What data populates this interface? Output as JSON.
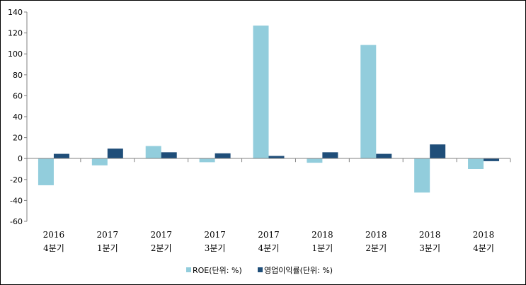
{
  "chart_data": {
    "type": "bar",
    "categories": [
      [
        "2016",
        "4분기"
      ],
      [
        "2017",
        "1분기"
      ],
      [
        "2017",
        "2분기"
      ],
      [
        "2017",
        "3분기"
      ],
      [
        "2017",
        "4분기"
      ],
      [
        "2018",
        "1분기"
      ],
      [
        "2018",
        "2분기"
      ],
      [
        "2018",
        "3분기"
      ],
      [
        "2018",
        "4분기"
      ]
    ],
    "series": [
      {
        "name": "ROE(단위: %)",
        "color": "#92CDDC",
        "values": [
          -25.5,
          -6.5,
          12,
          -3.5,
          127,
          -4,
          108.5,
          -32.5,
          -10
        ]
      },
      {
        "name": "영업이익률(단위: %)",
        "color": "#1F4E79",
        "values": [
          4.5,
          9.5,
          6,
          5,
          2.5,
          6,
          4.5,
          13.5,
          -2.5
        ]
      }
    ],
    "ylim": [
      -60,
      140
    ],
    "yticks": [
      -60,
      -40,
      -20,
      0,
      20,
      40,
      60,
      80,
      100,
      120,
      140
    ],
    "grid": false,
    "legend_position": "bottom"
  }
}
